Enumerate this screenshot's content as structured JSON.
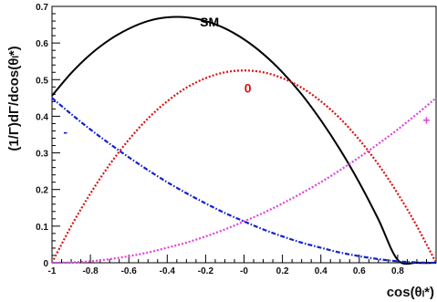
{
  "chart_data": {
    "type": "line",
    "xlabel": "cos(θₗ*)",
    "ylabel": "(1/Γ)dΓ/dcos(θₗ*)",
    "xlim": [
      -1,
      1
    ],
    "ylim": [
      0,
      0.7
    ],
    "xticks": [
      -1,
      -0.8,
      -0.6,
      -0.4,
      -0.2,
      0,
      0.2,
      0.4,
      0.6,
      0.8
    ],
    "xtick_labels": [
      "-1",
      "-0.8",
      "-0.6",
      "-0.4",
      "-0.2",
      "-0",
      "0.2",
      "0.4",
      "0.6",
      "0.8"
    ],
    "yticks": [
      0,
      0.1,
      0.2,
      0.3,
      0.4,
      0.5,
      0.6,
      0.7
    ],
    "ytick_labels": [
      "0",
      "0.1",
      "0.2",
      "0.3",
      "0.4",
      "0.5",
      "0.6",
      "0.7"
    ],
    "grid": false,
    "x": [
      -1,
      -0.9,
      -0.8,
      -0.7,
      -0.6,
      -0.5,
      -0.4,
      -0.3,
      -0.2,
      -0.1,
      0,
      0.1,
      0.2,
      0.3,
      0.4,
      0.5,
      0.6,
      0.7,
      0.8,
      0.9,
      1
    ],
    "series": [
      {
        "name": "SM",
        "color": "#000000",
        "style": "solid",
        "values": [
          0.456,
          0.518,
          0.569,
          0.609,
          0.639,
          0.66,
          0.67,
          0.67,
          0.66,
          0.64,
          0.61,
          0.57,
          0.52,
          0.46,
          0.389,
          0.309,
          0.219,
          0.118,
          0.008,
          0.0,
          0.0
        ]
      },
      {
        "name": "0",
        "color": "#dd1111",
        "style": "dotted",
        "values": [
          0.0,
          0.1,
          0.189,
          0.268,
          0.336,
          0.394,
          0.441,
          0.478,
          0.504,
          0.52,
          0.525,
          0.52,
          0.504,
          0.478,
          0.441,
          0.394,
          0.336,
          0.268,
          0.189,
          0.1,
          0.0
        ]
      },
      {
        "name": "-",
        "color": "#1122cc",
        "style": "dashdot",
        "values": [
          0.45,
          0.406,
          0.364,
          0.325,
          0.288,
          0.253,
          0.22,
          0.19,
          0.162,
          0.136,
          0.113,
          0.091,
          0.072,
          0.055,
          0.041,
          0.028,
          0.018,
          0.01,
          0.004,
          0.001,
          0.0
        ]
      },
      {
        "name": "+",
        "color": "#dd44dd",
        "style": "dotted",
        "values": [
          0.0,
          0.001,
          0.004,
          0.01,
          0.018,
          0.028,
          0.041,
          0.055,
          0.072,
          0.091,
          0.113,
          0.136,
          0.162,
          0.19,
          0.22,
          0.253,
          0.288,
          0.325,
          0.364,
          0.406,
          0.45
        ]
      }
    ],
    "annotations": [
      {
        "text": "SM",
        "x": -0.18,
        "y": 0.645,
        "color": "#000000"
      },
      {
        "text": "0",
        "x": 0.02,
        "y": 0.465,
        "color": "#dd1111"
      },
      {
        "text": "-",
        "x": -0.93,
        "y": 0.345,
        "color": "#1122cc"
      },
      {
        "text": "+",
        "x": 0.95,
        "y": 0.378,
        "color": "#dd44dd"
      }
    ]
  }
}
